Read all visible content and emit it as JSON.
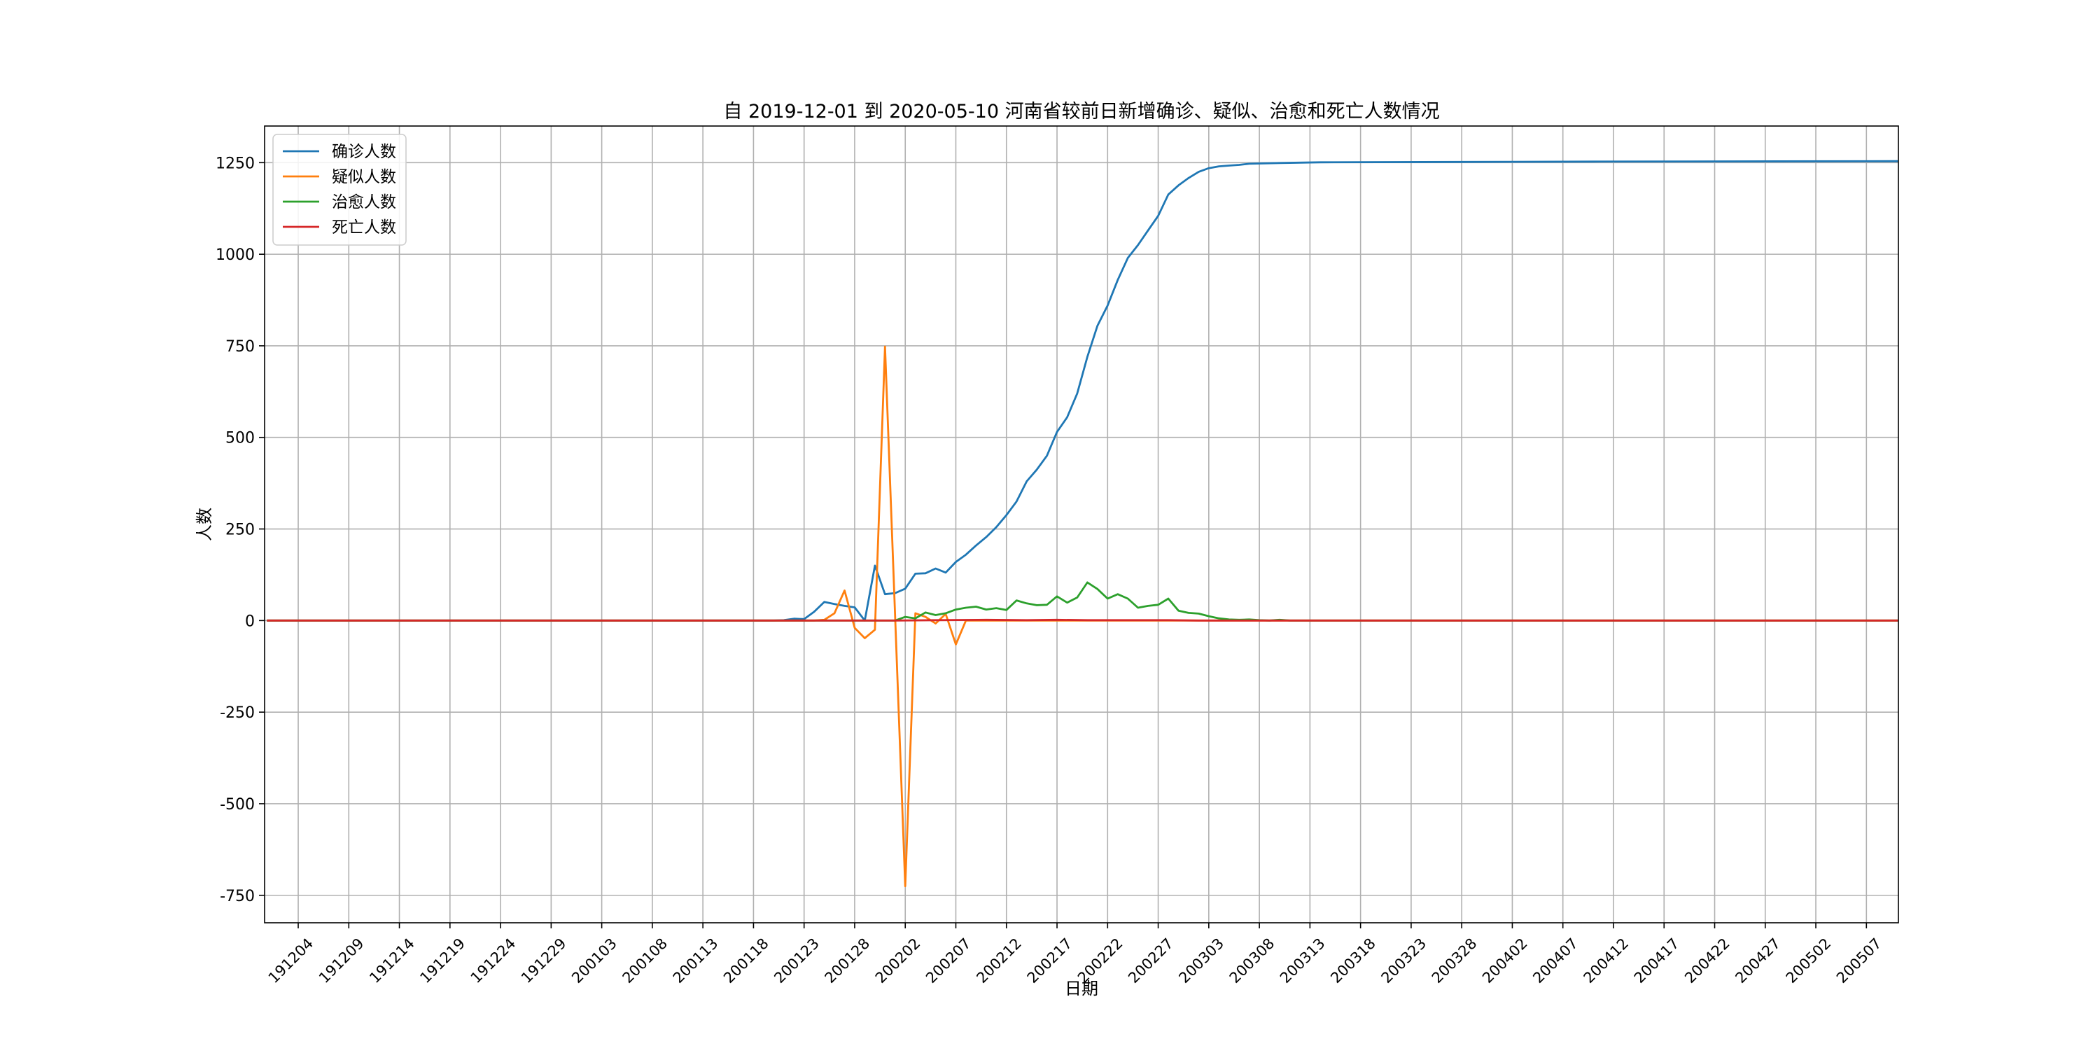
{
  "chart_data": {
    "type": "line",
    "title": "自 2019-12-01 到 2020-05-10 河南省较前日新增确诊、疑似、治愈和死亡人数情况",
    "xlabel": "日期",
    "ylabel": "人数",
    "start_date": "2019-12-01",
    "end_date": "2020-05-10",
    "x_ticks": [
      "191204",
      "191209",
      "191214",
      "191219",
      "191224",
      "191229",
      "200103",
      "200108",
      "200113",
      "200118",
      "200123",
      "200128",
      "200202",
      "200207",
      "200212",
      "200217",
      "200222",
      "200227",
      "200303",
      "200308",
      "200313",
      "200318",
      "200323",
      "200328",
      "200402",
      "200407",
      "200412",
      "200417",
      "200422",
      "200427",
      "200502",
      "200507"
    ],
    "y_ticks": [
      -750,
      -500,
      -250,
      0,
      250,
      500,
      750,
      1000,
      1250
    ],
    "ylim": [
      -825,
      1350
    ],
    "grid": true,
    "legend_position": "upper-left",
    "series": [
      {
        "name": "确诊人数",
        "color": "#1f77b4",
        "points": [
          [
            "2019-12-01",
            0
          ],
          [
            "2020-01-20",
            0
          ],
          [
            "2020-01-21",
            1
          ],
          [
            "2020-01-22",
            5
          ],
          [
            "2020-01-23",
            4
          ],
          [
            "2020-01-24",
            24
          ],
          [
            "2020-01-25",
            51
          ],
          [
            "2020-01-26",
            45
          ],
          [
            "2020-01-27",
            40
          ],
          [
            "2020-01-28",
            36
          ],
          [
            "2020-01-29",
            0
          ],
          [
            "2020-01-30",
            150
          ],
          [
            "2020-01-31",
            72
          ],
          [
            "2020-02-01",
            75
          ],
          [
            "2020-02-02",
            87
          ],
          [
            "2020-02-03",
            128
          ],
          [
            "2020-02-04",
            129
          ],
          [
            "2020-02-05",
            142
          ],
          [
            "2020-02-06",
            131
          ],
          [
            "2020-02-07",
            160
          ],
          [
            "2020-02-08",
            180
          ],
          [
            "2020-02-09",
            205
          ],
          [
            "2020-02-10",
            228
          ],
          [
            "2020-02-11",
            255
          ],
          [
            "2020-02-12",
            288
          ],
          [
            "2020-02-13",
            325
          ],
          [
            "2020-02-14",
            380
          ],
          [
            "2020-02-15",
            412
          ],
          [
            "2020-02-16",
            450
          ],
          [
            "2020-02-17",
            515
          ],
          [
            "2020-02-18",
            555
          ],
          [
            "2020-02-19",
            620
          ],
          [
            "2020-02-20",
            720
          ],
          [
            "2020-02-21",
            805
          ],
          [
            "2020-02-22",
            860
          ],
          [
            "2020-02-23",
            930
          ],
          [
            "2020-02-24",
            990
          ],
          [
            "2020-02-25",
            1025
          ],
          [
            "2020-02-26",
            1065
          ],
          [
            "2020-02-27",
            1105
          ],
          [
            "2020-02-28",
            1163
          ],
          [
            "2020-02-29",
            1188
          ],
          [
            "2020-03-01",
            1208
          ],
          [
            "2020-03-02",
            1225
          ],
          [
            "2020-03-03",
            1235
          ],
          [
            "2020-03-04",
            1240
          ],
          [
            "2020-03-05",
            1242
          ],
          [
            "2020-03-06",
            1244
          ],
          [
            "2020-03-07",
            1247
          ],
          [
            "2020-03-10",
            1249
          ],
          [
            "2020-03-12",
            1250
          ],
          [
            "2020-03-14",
            1251
          ],
          [
            "2020-03-28",
            1252
          ],
          [
            "2020-04-10",
            1253
          ],
          [
            "2020-05-10",
            1254
          ]
        ]
      },
      {
        "name": "疑似人数",
        "color": "#ff7f0e",
        "points": [
          [
            "2019-12-01",
            0
          ],
          [
            "2020-01-24",
            0
          ],
          [
            "2020-01-25",
            2
          ],
          [
            "2020-01-26",
            20
          ],
          [
            "2020-01-27",
            82
          ],
          [
            "2020-01-28",
            -20
          ],
          [
            "2020-01-29",
            -48
          ],
          [
            "2020-01-30",
            -25
          ],
          [
            "2020-01-31",
            748
          ],
          [
            "2020-02-02",
            -725
          ],
          [
            "2020-02-03",
            20
          ],
          [
            "2020-02-04",
            10
          ],
          [
            "2020-02-05",
            -8
          ],
          [
            "2020-02-06",
            18
          ],
          [
            "2020-02-07",
            -65
          ],
          [
            "2020-02-08",
            0
          ],
          [
            "2020-05-10",
            0
          ]
        ]
      },
      {
        "name": "治愈人数",
        "color": "#2ca02c",
        "points": [
          [
            "2019-12-01",
            0
          ],
          [
            "2020-02-01",
            0
          ],
          [
            "2020-02-02",
            10
          ],
          [
            "2020-02-03",
            6
          ],
          [
            "2020-02-04",
            22
          ],
          [
            "2020-02-05",
            15
          ],
          [
            "2020-02-06",
            20
          ],
          [
            "2020-02-07",
            30
          ],
          [
            "2020-02-08",
            35
          ],
          [
            "2020-02-09",
            38
          ],
          [
            "2020-02-10",
            30
          ],
          [
            "2020-02-11",
            34
          ],
          [
            "2020-02-12",
            29
          ],
          [
            "2020-02-13",
            55
          ],
          [
            "2020-02-14",
            47
          ],
          [
            "2020-02-15",
            42
          ],
          [
            "2020-02-16",
            43
          ],
          [
            "2020-02-17",
            66
          ],
          [
            "2020-02-18",
            49
          ],
          [
            "2020-02-19",
            63
          ],
          [
            "2020-02-20",
            104
          ],
          [
            "2020-02-21",
            86
          ],
          [
            "2020-02-22",
            60
          ],
          [
            "2020-02-23",
            72
          ],
          [
            "2020-02-24",
            60
          ],
          [
            "2020-02-25",
            35
          ],
          [
            "2020-02-26",
            40
          ],
          [
            "2020-02-27",
            43
          ],
          [
            "2020-02-28",
            60
          ],
          [
            "2020-02-29",
            27
          ],
          [
            "2020-03-01",
            21
          ],
          [
            "2020-03-02",
            19
          ],
          [
            "2020-03-03",
            12
          ],
          [
            "2020-03-04",
            6
          ],
          [
            "2020-03-05",
            3
          ],
          [
            "2020-03-06",
            2
          ],
          [
            "2020-03-07",
            3
          ],
          [
            "2020-03-08",
            1
          ],
          [
            "2020-03-09",
            0
          ],
          [
            "2020-03-10",
            2
          ],
          [
            "2020-03-11",
            0
          ],
          [
            "2020-05-10",
            0
          ]
        ]
      },
      {
        "name": "死亡人数",
        "color": "#d62728",
        "points": [
          [
            "2019-12-01",
            0
          ],
          [
            "2020-02-01",
            0
          ],
          [
            "2020-02-05",
            1
          ],
          [
            "2020-02-10",
            2
          ],
          [
            "2020-02-14",
            1
          ],
          [
            "2020-02-17",
            2
          ],
          [
            "2020-02-20",
            1
          ],
          [
            "2020-02-24",
            1
          ],
          [
            "2020-02-28",
            1
          ],
          [
            "2020-03-02",
            0
          ],
          [
            "2020-05-10",
            0
          ]
        ]
      }
    ]
  }
}
